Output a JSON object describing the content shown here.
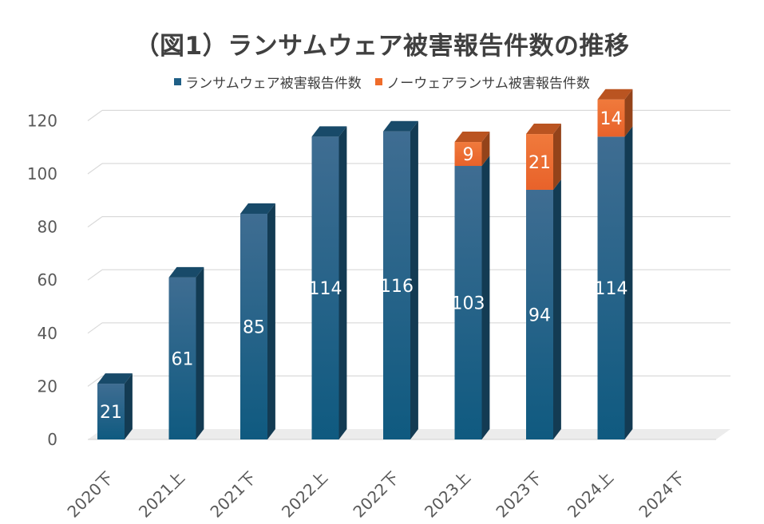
{
  "chart_data": {
    "type": "bar",
    "stacked": true,
    "title": "（図1）ランサムウェア被害報告件数の推移",
    "categories": [
      "2020下",
      "2021上",
      "2021下",
      "2022上",
      "2022下",
      "2023上",
      "2023下",
      "2024上",
      "2024下"
    ],
    "series": [
      {
        "name": "ランサムウェア被害報告件数",
        "color": "#1f5f86",
        "values": [
          21,
          61,
          85,
          114,
          116,
          103,
          94,
          114,
          null
        ]
      },
      {
        "name": "ノーウェアランサム被害報告件数",
        "color": "#ef6c2a",
        "values": [
          null,
          null,
          null,
          null,
          null,
          9,
          21,
          14,
          null
        ]
      }
    ],
    "y_ticks": [
      0,
      20,
      40,
      60,
      80,
      100,
      120
    ],
    "ylim": [
      0,
      130
    ],
    "grid": true,
    "legend_position": "top",
    "data_labels": true
  }
}
